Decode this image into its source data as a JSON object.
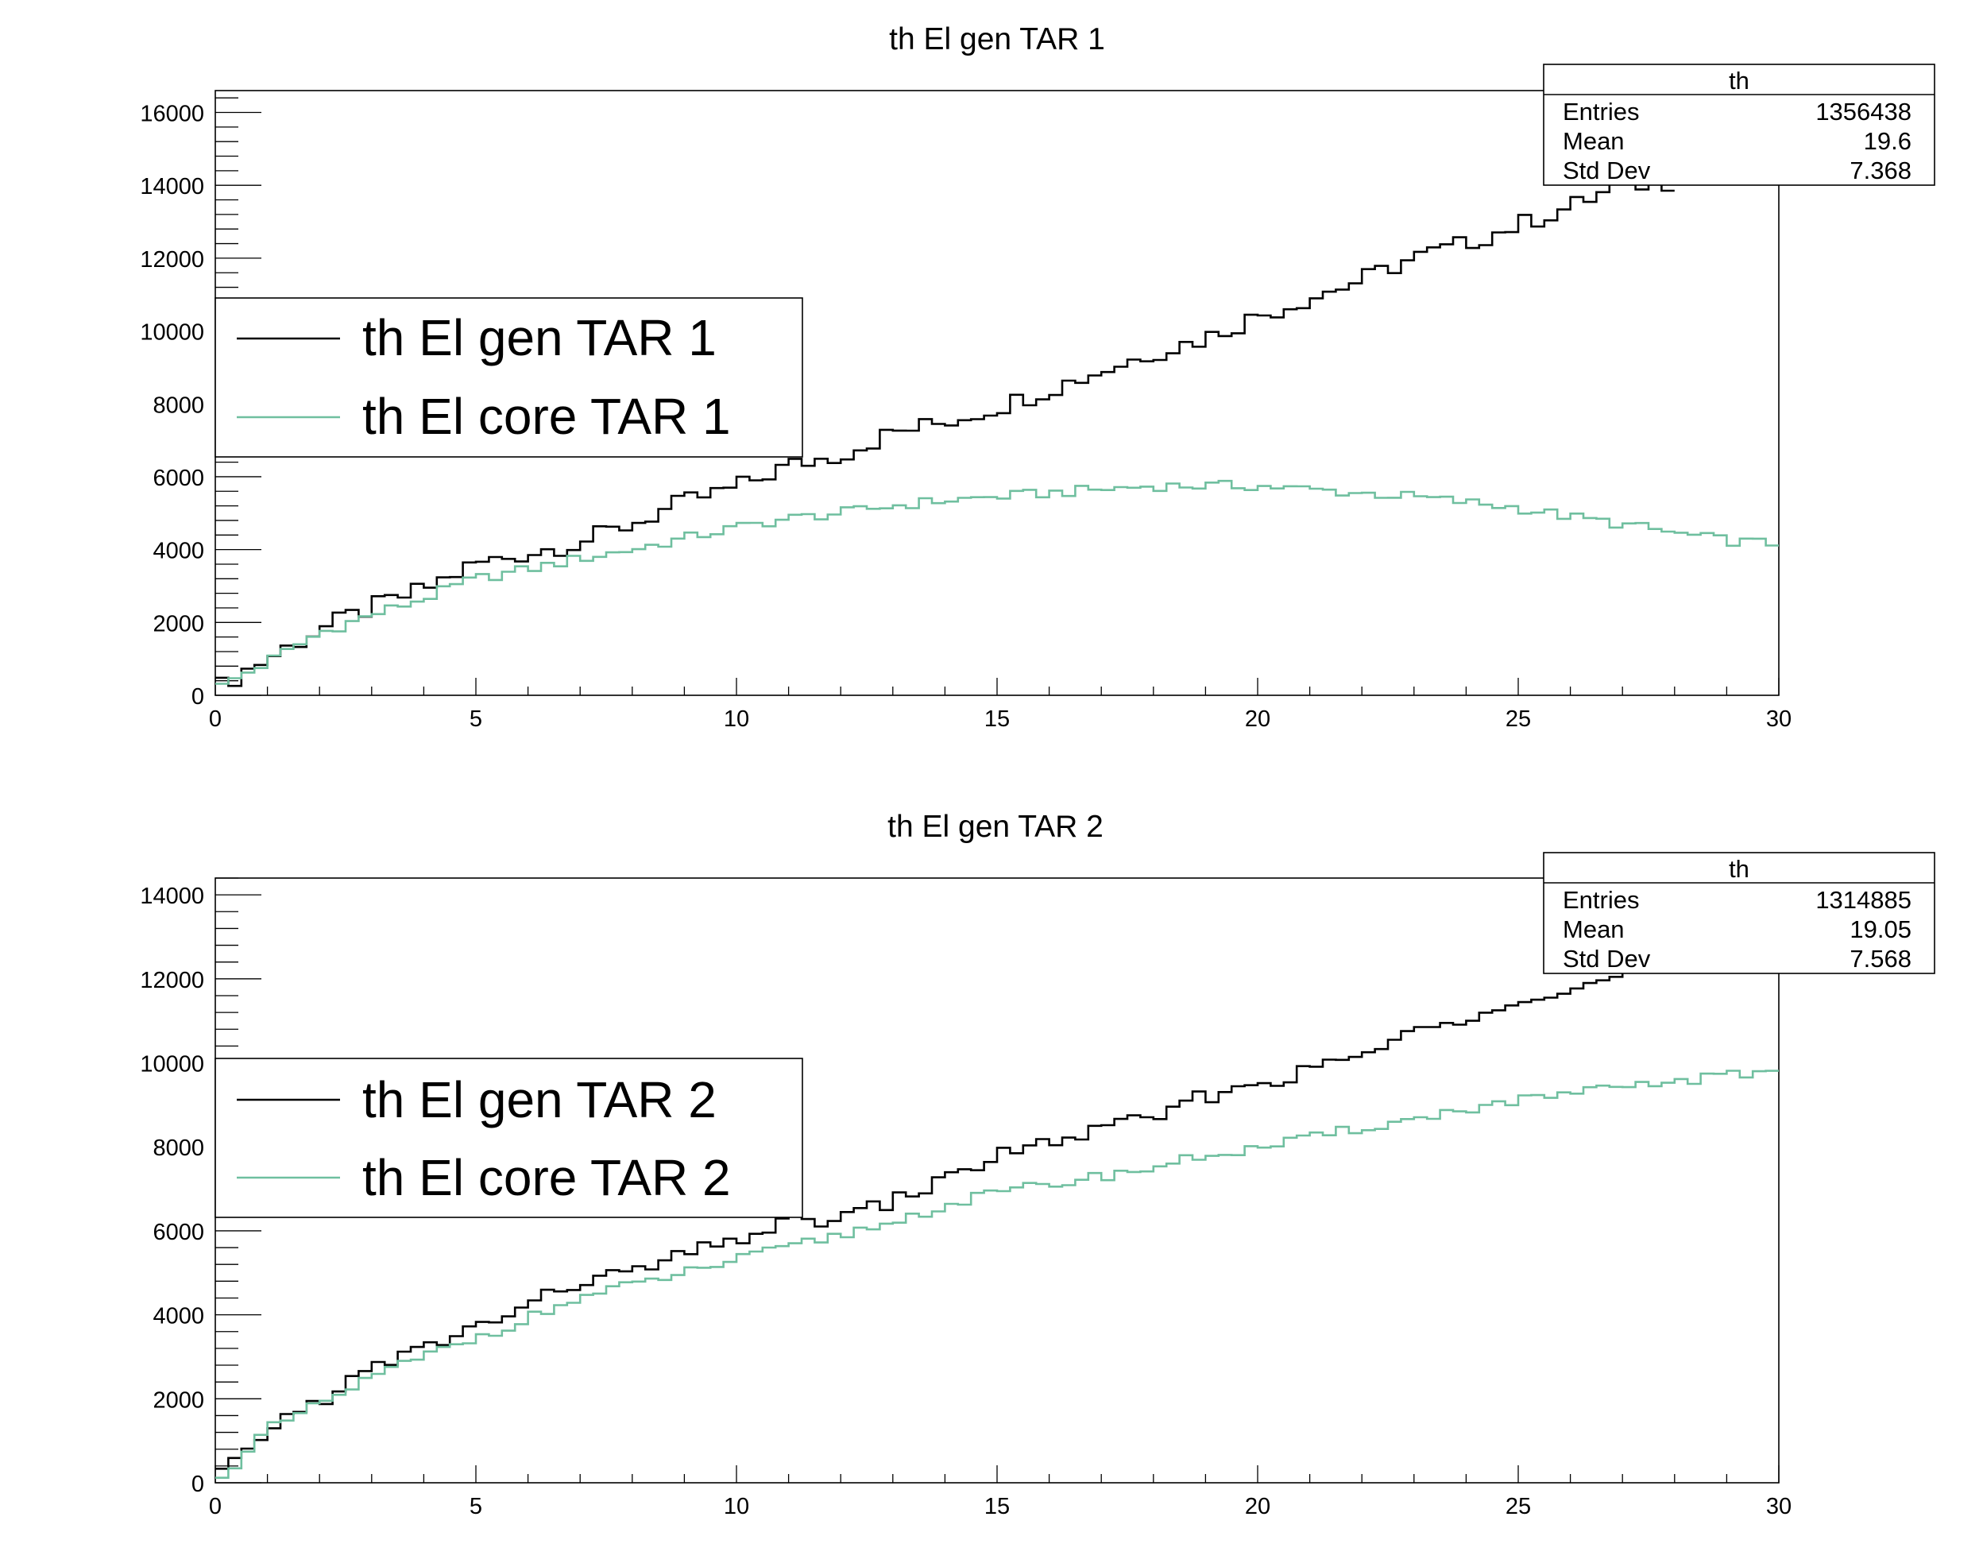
{
  "chart_data": [
    {
      "type": "histogram",
      "title": "th El gen TAR 1",
      "xlabel": "",
      "ylabel": "",
      "xlim": [
        0,
        30
      ],
      "ylim": [
        0,
        16600
      ],
      "x_ticks": [
        0,
        5,
        10,
        15,
        20,
        25,
        30
      ],
      "y_ticks": [
        0,
        2000,
        4000,
        6000,
        8000,
        10000,
        12000,
        14000,
        16000
      ],
      "bin_width": 0.25,
      "stats": {
        "header": "th",
        "rows": [
          {
            "label": "Entries",
            "value": "1356438"
          },
          {
            "label": "Mean",
            "value": "19.6"
          },
          {
            "label": "Std Dev",
            "value": "7.368"
          }
        ]
      },
      "legend": {
        "position": "left",
        "entries": [
          "th El gen TAR 1",
          "th El core TAR 1"
        ]
      },
      "series": [
        {
          "name": "th El gen TAR 1",
          "color": "#000000",
          "x_start": 0,
          "x_end": 28,
          "anchors": [
            [
              0,
              150
            ],
            [
              0.5,
              600
            ],
            [
              1,
              1000
            ],
            [
              2,
              1800
            ],
            [
              3,
              2400
            ],
            [
              4,
              2900
            ],
            [
              5,
              3600
            ],
            [
              6,
              3900
            ],
            [
              7,
              4200
            ],
            [
              8,
              4700
            ],
            [
              9,
              5300
            ],
            [
              10,
              5700
            ],
            [
              11,
              6300
            ],
            [
              12,
              6600
            ],
            [
              13,
              7200
            ],
            [
              14,
              7500
            ],
            [
              15,
              7900
            ],
            [
              16,
              8400
            ],
            [
              17,
              8900
            ],
            [
              18,
              9400
            ],
            [
              19,
              9800
            ],
            [
              20,
              10400
            ],
            [
              21,
              10900
            ],
            [
              22,
              11400
            ],
            [
              23,
              12000
            ],
            [
              24,
              12400
            ],
            [
              25,
              12900
            ],
            [
              26,
              13400
            ],
            [
              27,
              14000
            ],
            [
              28,
              14100
            ]
          ],
          "wiggle": 260
        },
        {
          "name": "th El core TAR 1",
          "color": "#6fbf9f",
          "x_start": 0,
          "x_end": 30,
          "anchors": [
            [
              0,
              150
            ],
            [
              0.5,
              550
            ],
            [
              1,
              900
            ],
            [
              2,
              1700
            ],
            [
              3,
              2200
            ],
            [
              4,
              2650
            ],
            [
              5,
              3200
            ],
            [
              6,
              3450
            ],
            [
              7,
              3750
            ],
            [
              8,
              4000
            ],
            [
              9,
              4300
            ],
            [
              10,
              4600
            ],
            [
              11,
              4850
            ],
            [
              12,
              5000
            ],
            [
              13,
              5200
            ],
            [
              14,
              5350
            ],
            [
              15,
              5450
            ],
            [
              16,
              5550
            ],
            [
              17,
              5650
            ],
            [
              18,
              5750
            ],
            [
              19,
              5750
            ],
            [
              20,
              5750
            ],
            [
              21,
              5650
            ],
            [
              22,
              5550
            ],
            [
              23,
              5450
            ],
            [
              24,
              5300
            ],
            [
              25,
              5150
            ],
            [
              26,
              4900
            ],
            [
              27,
              4700
            ],
            [
              28,
              4450
            ],
            [
              29,
              4250
            ],
            [
              30,
              4150
            ]
          ],
          "wiggle": 140
        }
      ]
    },
    {
      "type": "histogram",
      "title": "th El gen TAR 2",
      "xlabel": "",
      "ylabel": "",
      "xlim": [
        0,
        30
      ],
      "ylim": [
        0,
        14400
      ],
      "x_ticks": [
        0,
        5,
        10,
        15,
        20,
        25,
        30
      ],
      "y_ticks": [
        0,
        2000,
        4000,
        6000,
        8000,
        10000,
        12000,
        14000
      ],
      "bin_width": 0.25,
      "stats": {
        "header": "th",
        "rows": [
          {
            "label": "Entries",
            "value": "1314885"
          },
          {
            "label": "Mean",
            "value": "19.05"
          },
          {
            "label": "Std Dev",
            "value": "7.568"
          }
        ]
      },
      "legend": {
        "position": "left",
        "entries": [
          "th El gen TAR 2",
          "th El core TAR 2"
        ]
      },
      "series": [
        {
          "name": "th El gen TAR 2",
          "color": "#000000",
          "x_start": 0,
          "x_end": 27.5,
          "anchors": [
            [
              0,
              150
            ],
            [
              0.5,
              500
            ],
            [
              1,
              1300
            ],
            [
              2,
              1950
            ],
            [
              3,
              2700
            ],
            [
              4,
              3200
            ],
            [
              5,
              3700
            ],
            [
              6,
              4200
            ],
            [
              7,
              4800
            ],
            [
              8,
              5000
            ],
            [
              9,
              5400
            ],
            [
              10,
              5800
            ],
            [
              11,
              6200
            ],
            [
              12,
              6300
            ],
            [
              13,
              6700
            ],
            [
              14,
              7200
            ],
            [
              15,
              7800
            ],
            [
              16,
              8100
            ],
            [
              17,
              8400
            ],
            [
              18,
              8700
            ],
            [
              19,
              9200
            ],
            [
              20,
              9500
            ],
            [
              21,
              9800
            ],
            [
              22,
              10200
            ],
            [
              23,
              10700
            ],
            [
              24,
              11100
            ],
            [
              25,
              11600
            ],
            [
              26,
              11700
            ],
            [
              27,
              12100
            ],
            [
              27.5,
              12200
            ]
          ],
          "wiggle": 180
        },
        {
          "name": "th El core TAR 2",
          "color": "#6fbf9f",
          "x_start": 0,
          "x_end": 30,
          "anchors": [
            [
              0,
              150
            ],
            [
              0.5,
              500
            ],
            [
              1,
              1250
            ],
            [
              2,
              1850
            ],
            [
              3,
              2500
            ],
            [
              4,
              3000
            ],
            [
              5,
              3450
            ],
            [
              6,
              3900
            ],
            [
              7,
              4400
            ],
            [
              8,
              4700
            ],
            [
              9,
              5000
            ],
            [
              10,
              5300
            ],
            [
              11,
              5600
            ],
            [
              12,
              5900
            ],
            [
              13,
              6200
            ],
            [
              14,
              6600
            ],
            [
              15,
              6900
            ],
            [
              16,
              7100
            ],
            [
              17,
              7300
            ],
            [
              18,
              7500
            ],
            [
              19,
              7800
            ],
            [
              20,
              7950
            ],
            [
              21,
              8200
            ],
            [
              22,
              8450
            ],
            [
              23,
              8650
            ],
            [
              24,
              8900
            ],
            [
              25,
              9100
            ],
            [
              26,
              9250
            ],
            [
              27,
              9400
            ],
            [
              28,
              9550
            ],
            [
              29,
              9700
            ],
            [
              30,
              9800
            ]
          ],
          "wiggle": 120
        }
      ]
    }
  ]
}
